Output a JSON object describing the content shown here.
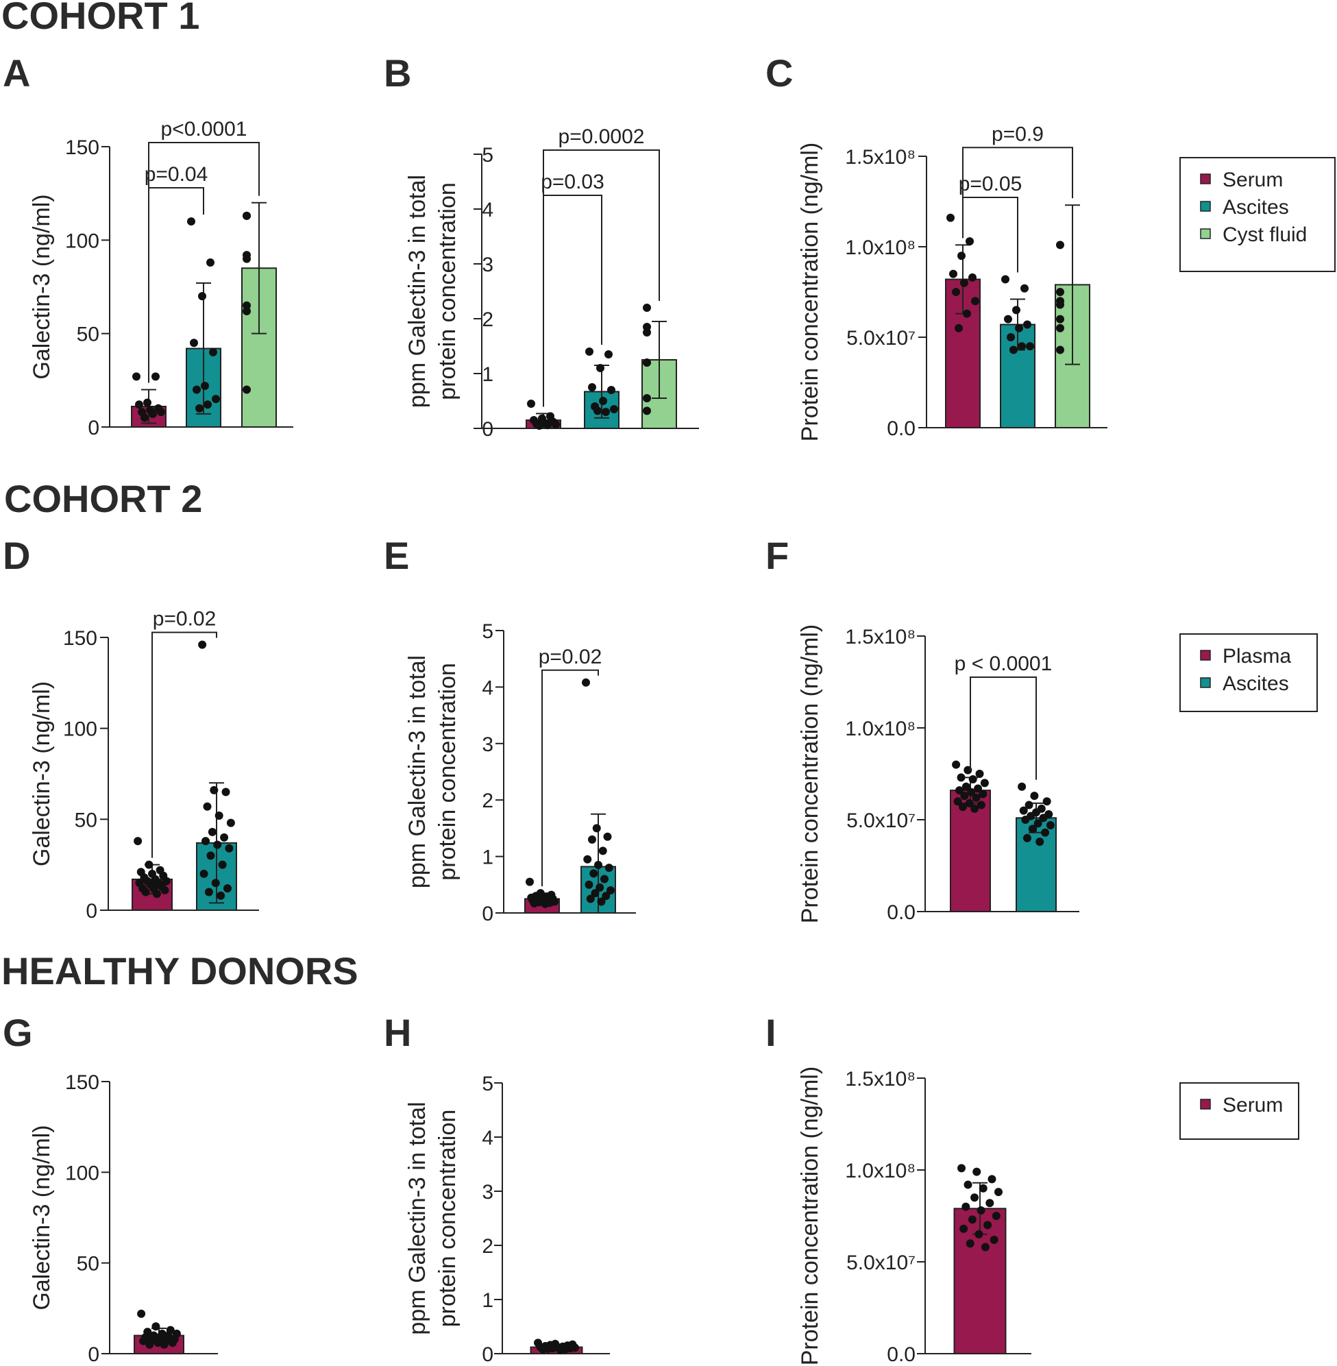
{
  "sections": [
    {
      "title": "COHORT 1"
    },
    {
      "title": "COHORT 2"
    },
    {
      "title": "HEALTHY DONORS"
    }
  ],
  "colors": {
    "Serum": "#98194e",
    "Plasma": "#98194e",
    "Ascites": "#139091",
    "Cyst fluid": "#92d18f"
  },
  "legends": [
    {
      "items": [
        "Serum",
        "Ascites",
        "Cyst fluid"
      ]
    },
    {
      "items": [
        "Plasma",
        "Ascites"
      ]
    },
    {
      "items": [
        "Serum"
      ]
    }
  ],
  "chart_data": [
    {
      "panel": "A",
      "type": "bar",
      "ylabel": [
        "Galectin-3 (ng/ml)"
      ],
      "ylim": [
        0,
        150
      ],
      "ticks": [
        0,
        50,
        100,
        150
      ],
      "tick_labels": [
        "0",
        "50",
        "100",
        "150"
      ],
      "categories": [
        "Serum",
        "Ascites",
        "Cyst fluid"
      ],
      "values": [
        11,
        42,
        85
      ],
      "errors": [
        9,
        35,
        35
      ],
      "points": [
        [
          27,
          27,
          13,
          12,
          10,
          9,
          8,
          8,
          7,
          5
        ],
        [
          110,
          88,
          70,
          45,
          40,
          22,
          20,
          15,
          12,
          10
        ],
        [
          113,
          113,
          92,
          90,
          65,
          62,
          20
        ]
      ],
      "comparisons": [
        {
          "from": 0,
          "to": 1,
          "label": "p=0.04"
        },
        {
          "from": 0,
          "to": 2,
          "label": "p<0.0001"
        }
      ]
    },
    {
      "panel": "B",
      "type": "bar",
      "ylabel": [
        "ppm Galectin-3 in total",
        "protein concentration"
      ],
      "ylim": [
        0,
        5
      ],
      "ticks": [
        0,
        1,
        2,
        3,
        4,
        5
      ],
      "tick_labels": [
        "0",
        "1",
        "2",
        "3",
        "4",
        "5"
      ],
      "categories": [
        "Serum",
        "Ascites",
        "Cyst fluid"
      ],
      "values": [
        0.15,
        0.67,
        1.25
      ],
      "errors": [
        0.12,
        0.48,
        0.7
      ],
      "points": [
        [
          0.45,
          0.22,
          0.18,
          0.15,
          0.12,
          0.1,
          0.08,
          0.07,
          0.06,
          0.05
        ],
        [
          1.4,
          1.35,
          1.1,
          0.75,
          0.7,
          0.5,
          0.4,
          0.35,
          0.3,
          0.32
        ],
        [
          2.2,
          1.85,
          1.75,
          1.2,
          1.2,
          0.55,
          0.32
        ]
      ],
      "comparisons": [
        {
          "from": 0,
          "to": 1,
          "label": "p=0.03"
        },
        {
          "from": 0,
          "to": 2,
          "label": "p=0.0002"
        }
      ]
    },
    {
      "panel": "C",
      "type": "bar",
      "ylabel": [
        "Protein concentration (ng/ml)"
      ],
      "ylim": [
        0,
        150000000
      ],
      "ticks": [
        0,
        50000000,
        100000000,
        150000000
      ],
      "tick_labels": [
        "0.0",
        "5.0x10⁷",
        "1.0x10⁸",
        "1.5x10⁸"
      ],
      "categories": [
        "Serum",
        "Ascites",
        "Cyst fluid"
      ],
      "values": [
        82000000,
        57000000,
        79000000
      ],
      "errors": [
        19000000,
        14000000,
        44000000
      ],
      "points": [
        [
          116000000,
          103000000,
          95000000,
          85000000,
          83000000,
          80000000,
          75000000,
          70000000,
          63000000,
          55000000
        ],
        [
          82000000,
          77000000,
          65000000,
          60000000,
          57000000,
          55000000,
          50000000,
          45000000,
          45000000,
          43000000
        ],
        [
          101000000,
          75000000,
          70000000,
          68000000,
          60000000,
          55000000,
          43000000
        ]
      ],
      "comparisons": [
        {
          "from": 0,
          "to": 1,
          "label": "p=0.05"
        },
        {
          "from": 0,
          "to": 2,
          "label": "p=0.9"
        }
      ]
    },
    {
      "panel": "D",
      "type": "bar",
      "ylabel": [
        "Galectin-3 (ng/ml)"
      ],
      "ylim": [
        0,
        150
      ],
      "ticks": [
        0,
        50,
        100,
        150
      ],
      "tick_labels": [
        "0",
        "50",
        "100",
        "150"
      ],
      "categories": [
        "Plasma",
        "Ascites"
      ],
      "values": [
        17,
        37
      ],
      "errors": [
        8,
        33
      ],
      "points": [
        [
          38,
          25,
          22,
          21,
          20,
          19,
          18,
          17,
          16,
          16,
          15,
          15,
          14,
          13,
          12,
          12,
          11,
          10,
          9
        ],
        [
          146,
          66,
          65,
          57,
          52,
          48,
          43,
          40,
          38,
          36,
          34,
          30,
          25,
          20,
          15,
          12,
          10,
          8
        ]
      ],
      "comparisons": [
        {
          "from": 0,
          "to": 1,
          "label": "p=0.02"
        }
      ]
    },
    {
      "panel": "E",
      "type": "bar",
      "ylabel": [
        "ppm Galectin-3 in total",
        "protein concentration"
      ],
      "ylim": [
        0,
        5
      ],
      "ticks": [
        0,
        1,
        2,
        3,
        4,
        5
      ],
      "tick_labels": [
        "0",
        "1",
        "2",
        "3",
        "4",
        "5"
      ],
      "categories": [
        "Plasma",
        "Ascites"
      ],
      "values": [
        0.25,
        0.82
      ],
      "errors": [
        0.1,
        0.93
      ],
      "points": [
        [
          0.55,
          0.35,
          0.32,
          0.3,
          0.28,
          0.27,
          0.26,
          0.25,
          0.24,
          0.23,
          0.22,
          0.21,
          0.2,
          0.19,
          0.18,
          0.17,
          0.16
        ],
        [
          4.08,
          1.5,
          1.35,
          1.3,
          1.1,
          0.95,
          0.85,
          0.8,
          0.7,
          0.6,
          0.5,
          0.45,
          0.4,
          0.35,
          0.3,
          0.25,
          0.2
        ]
      ],
      "comparisons": [
        {
          "from": 0,
          "to": 1,
          "label": "p=0.02"
        }
      ]
    },
    {
      "panel": "F",
      "type": "bar",
      "ylabel": [
        "Protein concentration (ng/ml)"
      ],
      "ylim": [
        0,
        150000000
      ],
      "ticks": [
        0,
        50000000,
        100000000,
        150000000
      ],
      "tick_labels": [
        "0.0",
        "5.0x10⁷",
        "1.0x10⁸",
        "1.5x10⁸"
      ],
      "categories": [
        "Plasma",
        "Ascites"
      ],
      "values": [
        66000000,
        51000000
      ],
      "errors": [
        7000000,
        8000000
      ],
      "points": [
        [
          80000000,
          77000000,
          75000000,
          73000000,
          72000000,
          70000000,
          68000000,
          67000000,
          66000000,
          65000000,
          64000000,
          63000000,
          62000000,
          60000000,
          59000000,
          58000000,
          57000000,
          56000000
        ],
        [
          68000000,
          63000000,
          60000000,
          58000000,
          56000000,
          55000000,
          54000000,
          53000000,
          52000000,
          51000000,
          50000000,
          48000000,
          47000000,
          45000000,
          43000000,
          40000000,
          38000000
        ]
      ],
      "comparisons": [
        {
          "from": 0,
          "to": 1,
          "label": "p < 0.0001"
        }
      ]
    },
    {
      "panel": "G",
      "type": "bar",
      "ylabel": [
        "Galectin-3 (ng/ml)"
      ],
      "ylim": [
        0,
        150
      ],
      "ticks": [
        0,
        50,
        100,
        150
      ],
      "tick_labels": [
        "0",
        "50",
        "100",
        "150"
      ],
      "categories": [
        "Serum"
      ],
      "values": [
        10
      ],
      "errors": [
        4
      ],
      "points": [
        [
          22,
          15,
          13,
          12,
          11,
          11,
          10,
          10,
          9,
          9,
          8,
          8,
          7,
          7,
          6,
          6,
          5,
          5
        ]
      ],
      "comparisons": []
    },
    {
      "panel": "H",
      "type": "bar",
      "ylabel": [
        "ppm Galectin-3 in total",
        "protein concentration"
      ],
      "ylim": [
        0,
        5
      ],
      "ticks": [
        0,
        1,
        2,
        3,
        4,
        5
      ],
      "tick_labels": [
        "0",
        "1",
        "2",
        "3",
        "4",
        "5"
      ],
      "categories": [
        "Serum"
      ],
      "values": [
        0.12
      ],
      "errors": [
        0.04
      ],
      "points": [
        [
          0.2,
          0.18,
          0.17,
          0.16,
          0.15,
          0.14,
          0.13,
          0.12,
          0.12,
          0.11,
          0.1,
          0.1,
          0.09,
          0.08,
          0.08,
          0.07
        ]
      ],
      "comparisons": []
    },
    {
      "panel": "I",
      "type": "bar",
      "ylabel": [
        "Protein concentration (ng/ml)"
      ],
      "ylim": [
        0,
        150000000
      ],
      "ticks": [
        0,
        50000000,
        100000000,
        150000000
      ],
      "tick_labels": [
        "0.0",
        "5.0x10⁷",
        "1.0x10⁸",
        "1.5x10⁸"
      ],
      "categories": [
        "Serum"
      ],
      "values": [
        79000000
      ],
      "errors": [
        14000000
      ],
      "points": [
        [
          101000000,
          99000000,
          95000000,
          92000000,
          90000000,
          88000000,
          85000000,
          82000000,
          80000000,
          78000000,
          75000000,
          73000000,
          70000000,
          68000000,
          65000000,
          62000000,
          60000000,
          58000000
        ]
      ],
      "comparisons": []
    }
  ]
}
